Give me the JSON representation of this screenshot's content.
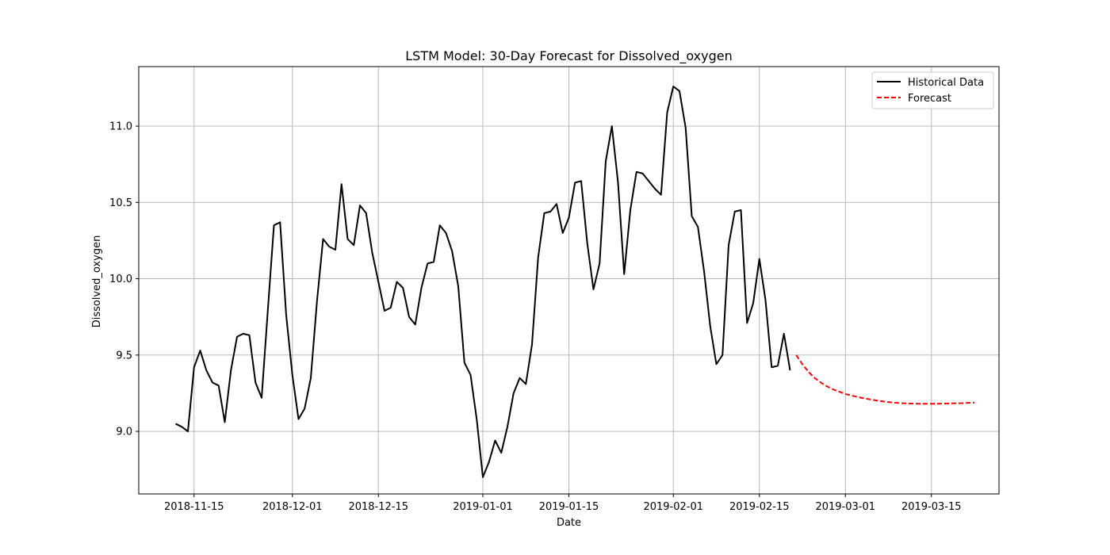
{
  "chart_data": {
    "type": "line",
    "title": "LSTM Model: 30-Day Forecast for Dissolved_oxygen",
    "xlabel": "Date",
    "ylabel": "Dissolved_oxygen",
    "xlim": [
      "2018-11-06",
      "2019-03-26"
    ],
    "ylim": [
      8.59,
      11.39
    ],
    "x_ticks": [
      "2018-11-15",
      "2018-12-01",
      "2018-12-15",
      "2019-01-01",
      "2019-01-15",
      "2019-02-01",
      "2019-02-15",
      "2019-03-01",
      "2019-03-15"
    ],
    "y_ticks": [
      9.0,
      9.5,
      10.0,
      10.5,
      11.0
    ],
    "grid": true,
    "legend_position": "top-right",
    "series": [
      {
        "name": "Historical Data",
        "color": "#000000",
        "style": "solid",
        "start_date": "2018-11-12",
        "values": [
          9.05,
          9.03,
          9.0,
          9.42,
          9.53,
          9.4,
          9.32,
          9.3,
          9.06,
          9.4,
          9.62,
          9.64,
          9.63,
          9.32,
          9.22,
          9.79,
          10.35,
          10.37,
          9.76,
          9.37,
          9.08,
          9.15,
          9.35,
          9.85,
          10.26,
          10.21,
          10.19,
          10.62,
          10.26,
          10.22,
          10.48,
          10.43,
          10.17,
          9.98,
          9.79,
          9.81,
          9.98,
          9.94,
          9.75,
          9.7,
          9.94,
          10.1,
          10.11,
          10.35,
          10.3,
          10.18,
          9.95,
          9.45,
          9.37,
          9.08,
          8.7,
          8.8,
          8.94,
          8.86,
          9.03,
          9.25,
          9.35,
          9.31,
          9.57,
          10.14,
          10.43,
          10.44,
          10.49,
          10.3,
          10.4,
          10.63,
          10.64,
          10.23,
          9.93,
          10.1,
          10.77,
          11.0,
          10.63,
          10.03,
          10.45,
          10.7,
          10.69,
          10.64,
          10.59,
          10.55,
          11.09,
          11.26,
          11.23,
          10.99,
          10.41,
          10.34,
          10.05,
          9.69,
          9.44,
          9.5,
          10.22,
          10.44,
          10.45,
          9.71,
          9.84,
          10.13,
          9.86,
          9.42,
          9.43,
          9.64,
          9.4
        ]
      },
      {
        "name": "Forecast",
        "color": "#ff0000",
        "style": "dashed",
        "start_date": "2019-02-21",
        "values": [
          9.5,
          9.44,
          9.39,
          9.35,
          9.32,
          9.295,
          9.275,
          9.26,
          9.245,
          9.235,
          9.225,
          9.217,
          9.21,
          9.203,
          9.197,
          9.192,
          9.188,
          9.185,
          9.183,
          9.182,
          9.181,
          9.181,
          9.181,
          9.181,
          9.182,
          9.183,
          9.184,
          9.185,
          9.187,
          9.189
        ]
      }
    ]
  }
}
